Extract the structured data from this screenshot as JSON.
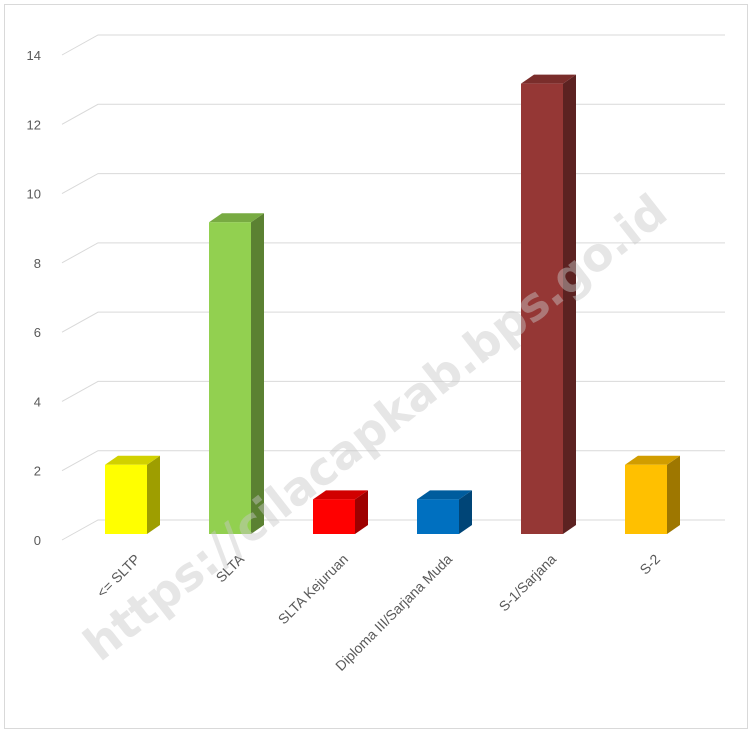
{
  "chart_data": {
    "type": "bar",
    "style": "3d-column",
    "categories": [
      "<= SLTP",
      "SLTA",
      "SLTA Kejuruan",
      "Diploma III/Sarjana Muda",
      "S-1/Sarjana",
      "S-2"
    ],
    "values": [
      2,
      9,
      1,
      1,
      13,
      2
    ],
    "colors": [
      "#FFFF00",
      "#92D050",
      "#FF0000",
      "#0070C0",
      "#953735",
      "#FFC000"
    ],
    "yticks": [
      "0",
      "2",
      "4",
      "6",
      "8",
      "10",
      "12",
      "14"
    ],
    "ylim": [
      0,
      14
    ],
    "grid": true,
    "legend": "none"
  },
  "watermark": "https://cilacapkab.bps.go.id",
  "colors": {
    "grid": "#d9d9d9",
    "axis_text": "#595959"
  }
}
